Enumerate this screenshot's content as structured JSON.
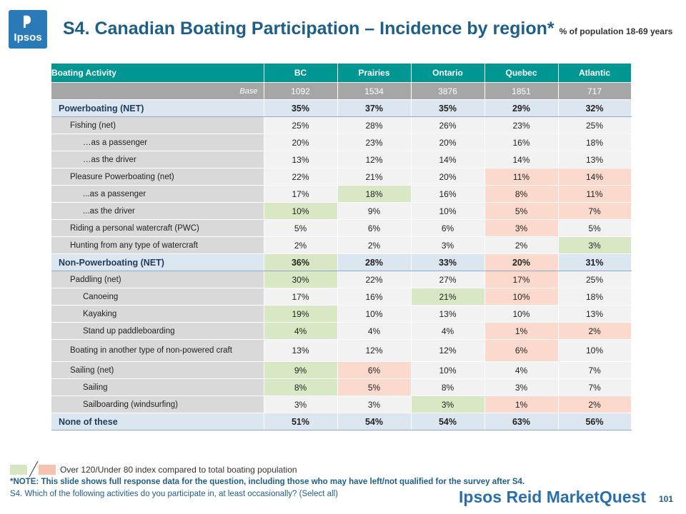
{
  "logo": {
    "text": "Ipsos"
  },
  "title": {
    "main": "S4. Canadian Boating Participation – Incidence by region*",
    "sub": "% of population 18-69 years"
  },
  "table": {
    "headers": [
      "Boating Activity",
      "BC",
      "Prairies",
      "Ontario",
      "Quebec",
      "Atlantic"
    ],
    "base": {
      "label": "Base",
      "values": [
        "1092",
        "1534",
        "3876",
        "1851",
        "717"
      ]
    },
    "rows": [
      {
        "label": "Powerboating (NET)",
        "type": "net",
        "values": [
          "35%",
          "37%",
          "35%",
          "29%",
          "32%"
        ],
        "flags": [
          "",
          "",
          "",
          "",
          ""
        ]
      },
      {
        "label": "Fishing (net)",
        "type": "lvl1",
        "values": [
          "25%",
          "28%",
          "26%",
          "23%",
          "25%"
        ],
        "flags": [
          "",
          "",
          "",
          "",
          ""
        ]
      },
      {
        "label": "…as a passenger",
        "type": "lvl2",
        "values": [
          "20%",
          "23%",
          "20%",
          "16%",
          "18%"
        ],
        "flags": [
          "",
          "",
          "",
          "",
          ""
        ]
      },
      {
        "label": "…as the driver",
        "type": "lvl2",
        "values": [
          "13%",
          "12%",
          "14%",
          "14%",
          "13%"
        ],
        "flags": [
          "",
          "",
          "",
          "",
          ""
        ]
      },
      {
        "label": "Pleasure Powerboating (net)",
        "type": "lvl1",
        "values": [
          "22%",
          "21%",
          "20%",
          "11%",
          "14%"
        ],
        "flags": [
          "",
          "",
          "",
          "under",
          "under"
        ]
      },
      {
        "label": "...as a passenger",
        "type": "lvl2",
        "values": [
          "17%",
          "18%",
          "16%",
          "8%",
          "11%"
        ],
        "flags": [
          "",
          "over",
          "",
          "under",
          "under"
        ]
      },
      {
        "label": "...as the driver",
        "type": "lvl2",
        "values": [
          "10%",
          "9%",
          "10%",
          "5%",
          "7%"
        ],
        "flags": [
          "over",
          "",
          "",
          "under",
          "under"
        ]
      },
      {
        "label": "Riding a personal watercraft (PWC)",
        "type": "lvl1",
        "values": [
          "5%",
          "6%",
          "6%",
          "3%",
          "5%"
        ],
        "flags": [
          "",
          "",
          "",
          "under",
          ""
        ]
      },
      {
        "label": "Hunting from any type of watercraft",
        "type": "lvl1",
        "values": [
          "2%",
          "2%",
          "3%",
          "2%",
          "3%"
        ],
        "flags": [
          "",
          "",
          "",
          "",
          "over"
        ]
      },
      {
        "label": "Non-Powerboating (NET)",
        "type": "net",
        "values": [
          "36%",
          "28%",
          "33%",
          "20%",
          "31%"
        ],
        "flags": [
          "over",
          "",
          "",
          "under",
          ""
        ]
      },
      {
        "label": "Paddling (net)",
        "type": "lvl1",
        "values": [
          "30%",
          "22%",
          "27%",
          "17%",
          "25%"
        ],
        "flags": [
          "over",
          "",
          "",
          "under",
          ""
        ]
      },
      {
        "label": "Canoeing",
        "type": "lvl2",
        "values": [
          "17%",
          "16%",
          "21%",
          "10%",
          "18%"
        ],
        "flags": [
          "",
          "",
          "over",
          "under",
          ""
        ]
      },
      {
        "label": "Kayaking",
        "type": "lvl2",
        "values": [
          "19%",
          "10%",
          "13%",
          "10%",
          "13%"
        ],
        "flags": [
          "over",
          "",
          "",
          "",
          ""
        ]
      },
      {
        "label": "Stand up paddleboarding",
        "type": "lvl2",
        "values": [
          "4%",
          "4%",
          "4%",
          "1%",
          "2%"
        ],
        "flags": [
          "over",
          "",
          "",
          "under",
          "under"
        ]
      },
      {
        "label": "Boating in another type of non-powered craft",
        "type": "lvl1 tall",
        "values": [
          "13%",
          "12%",
          "12%",
          "6%",
          "10%"
        ],
        "flags": [
          "",
          "",
          "",
          "under",
          ""
        ]
      },
      {
        "label": "Sailing (net)",
        "type": "lvl1",
        "values": [
          "9%",
          "6%",
          "10%",
          "4%",
          "7%"
        ],
        "flags": [
          "over",
          "under",
          "",
          "",
          ""
        ]
      },
      {
        "label": "Sailing",
        "type": "lvl2",
        "values": [
          "8%",
          "5%",
          "8%",
          "3%",
          "7%"
        ],
        "flags": [
          "over",
          "under",
          "",
          "",
          ""
        ]
      },
      {
        "label": "Sailboarding (windsurfing)",
        "type": "lvl2",
        "values": [
          "3%",
          "3%",
          "3%",
          "1%",
          "2%"
        ],
        "flags": [
          "",
          "",
          "over",
          "under",
          "under"
        ]
      },
      {
        "label": "None of these",
        "type": "net",
        "values": [
          "51%",
          "54%",
          "54%",
          "63%",
          "56%"
        ],
        "flags": [
          "",
          "",
          "",
          "",
          ""
        ]
      }
    ]
  },
  "legend": {
    "text": "Over 120/Under 80 index compared to total boating population",
    "over_color": "#d7e6c2",
    "under_color": "#f7c2ae"
  },
  "note": "*NOTE: This slide shows full response data for the question, including those who may have left/not qualified for the survey after S4.",
  "question": "S4. Which of the following activities do you participate in, at least occasionally? (Select all)",
  "brand": "Ipsos Reid MarketQuest",
  "page_number": "101"
}
